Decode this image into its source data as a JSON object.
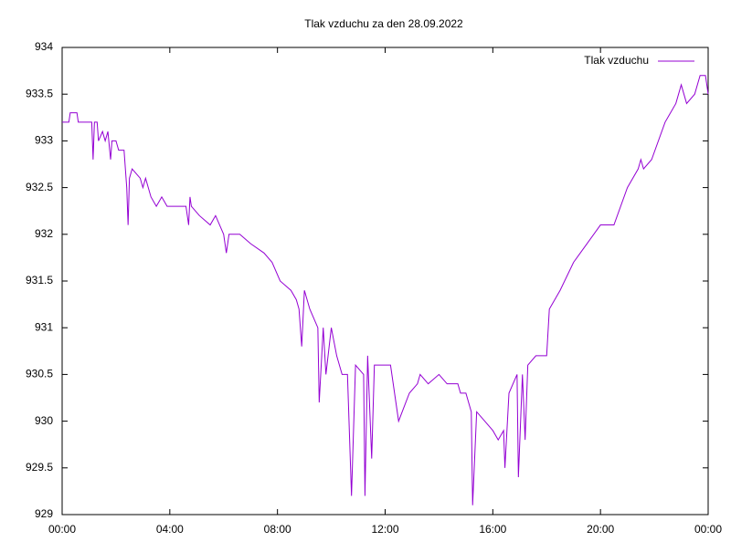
{
  "chart_data": {
    "type": "line",
    "title": "Tlak vzduchu za den 28.09.2022",
    "x": [
      0,
      0.25,
      0.3,
      0.55,
      0.6,
      1.1,
      1.15,
      1.2,
      1.3,
      1.35,
      1.5,
      1.6,
      1.7,
      1.8,
      1.85,
      2.0,
      2.1,
      2.3,
      2.4,
      2.45,
      2.5,
      2.6,
      2.9,
      3.0,
      3.1,
      3.3,
      3.5,
      3.7,
      3.9,
      4.6,
      4.7,
      4.75,
      4.8,
      5.1,
      5.5,
      5.7,
      6.0,
      6.1,
      6.2,
      6.6,
      7.0,
      7.5,
      7.8,
      8.1,
      8.5,
      8.7,
      8.8,
      8.9,
      9.0,
      9.2,
      9.5,
      9.55,
      9.7,
      9.8,
      10.0,
      10.2,
      10.4,
      10.6,
      10.75,
      10.9,
      11.2,
      11.25,
      11.35,
      11.5,
      11.6,
      12.2,
      12.4,
      12.5,
      12.9,
      13.2,
      13.3,
      13.6,
      14.0,
      14.3,
      14.7,
      14.8,
      15.0,
      15.2,
      15.25,
      15.4,
      15.7,
      16.0,
      16.2,
      16.4,
      16.45,
      16.6,
      16.9,
      16.95,
      17.1,
      17.2,
      17.3,
      17.6,
      18.0,
      18.1,
      18.5,
      19.0,
      19.5,
      20.0,
      20.5,
      21.0,
      21.4,
      21.5,
      21.6,
      21.9,
      22.4,
      22.8,
      23.0,
      23.2,
      23.5,
      23.7,
      23.9,
      24.0
    ],
    "series": [
      {
        "name": "Tlak vzduchu",
        "color": "#9400d3",
        "values": [
          933.2,
          933.2,
          933.3,
          933.3,
          933.2,
          933.2,
          932.8,
          933.2,
          933.2,
          933.0,
          933.1,
          933.0,
          933.1,
          932.8,
          933.0,
          933.0,
          932.9,
          932.9,
          932.5,
          932.1,
          932.6,
          932.7,
          932.6,
          932.5,
          932.6,
          932.4,
          932.3,
          932.4,
          932.3,
          932.3,
          932.1,
          932.4,
          932.3,
          932.2,
          932.1,
          932.2,
          932.0,
          931.8,
          932.0,
          932.0,
          931.9,
          931.8,
          931.7,
          931.5,
          931.4,
          931.3,
          931.2,
          930.8,
          931.4,
          931.2,
          931.0,
          930.2,
          931.0,
          930.5,
          931.0,
          930.7,
          930.5,
          930.5,
          929.2,
          930.6,
          930.5,
          929.2,
          930.7,
          929.6,
          930.6,
          930.6,
          930.2,
          930.0,
          930.3,
          930.4,
          930.5,
          930.4,
          930.5,
          930.4,
          930.4,
          930.3,
          930.3,
          930.1,
          929.1,
          930.1,
          930.0,
          929.9,
          929.8,
          929.9,
          929.5,
          930.3,
          930.5,
          929.4,
          930.5,
          929.8,
          930.6,
          930.7,
          930.7,
          931.2,
          931.4,
          931.7,
          931.9,
          932.1,
          932.1,
          932.5,
          932.7,
          932.8,
          932.7,
          932.8,
          933.2,
          933.4,
          933.6,
          933.4,
          933.5,
          933.7,
          933.7,
          933.5
        ]
      }
    ],
    "xlim": [
      0,
      24
    ],
    "xticks": [
      {
        "value": 0,
        "label": "00:00"
      },
      {
        "value": 4,
        "label": "04:00"
      },
      {
        "value": 8,
        "label": "08:00"
      },
      {
        "value": 12,
        "label": "12:00"
      },
      {
        "value": 16,
        "label": "16:00"
      },
      {
        "value": 20,
        "label": "20:00"
      },
      {
        "value": 24,
        "label": "00:00"
      }
    ],
    "ylim": [
      929,
      934
    ],
    "yticks": [
      929,
      929.5,
      930,
      930.5,
      931,
      931.5,
      932,
      932.5,
      933,
      933.5,
      934
    ],
    "legend": "top-right"
  }
}
